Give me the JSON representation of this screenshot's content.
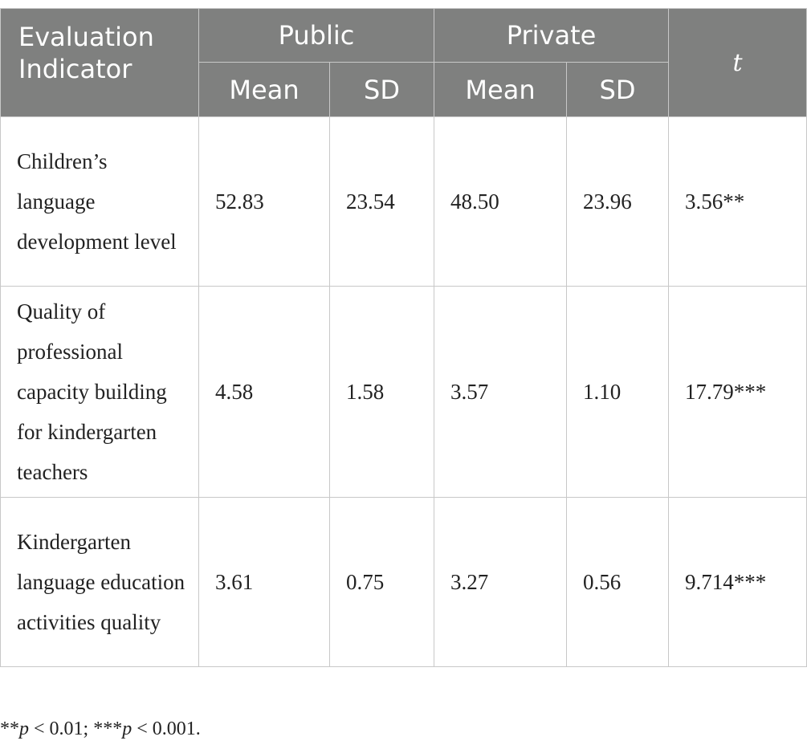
{
  "table": {
    "headers": {
      "indicator": "Evaluation Indicator",
      "public": "Public",
      "private": "Private",
      "t": "t",
      "mean_public": "Mean",
      "sd_public": "SD",
      "mean_private": "Mean",
      "sd_private": "SD"
    },
    "rows": [
      {
        "indicator": "Children’s language development level",
        "public_mean": "52.83",
        "public_sd": "23.54",
        "private_mean": "48.50",
        "private_sd": "23.96",
        "t": "3.56**"
      },
      {
        "indicator": "Quality of professional capacity building for kindergarten teachers",
        "public_mean": "4.58",
        "public_sd": "1.58",
        "private_mean": "3.57",
        "private_sd": "1.10",
        "t": "17.79***"
      },
      {
        "indicator": "Kindergarten language education activities quality",
        "public_mean": "3.61",
        "public_sd": "0.75",
        "private_mean": "3.27",
        "private_sd": "0.56",
        "t": "9.714***"
      }
    ]
  },
  "footnote": {
    "stars_1": "**",
    "p_1": "p",
    "cond_1": " < 0.01; ",
    "stars_2": "***",
    "p_2": "p",
    "cond_2": " < 0.001."
  },
  "colors": {
    "header_bg": "#7f807f",
    "header_text": "#ffffff",
    "border": "#c8c8c8"
  }
}
